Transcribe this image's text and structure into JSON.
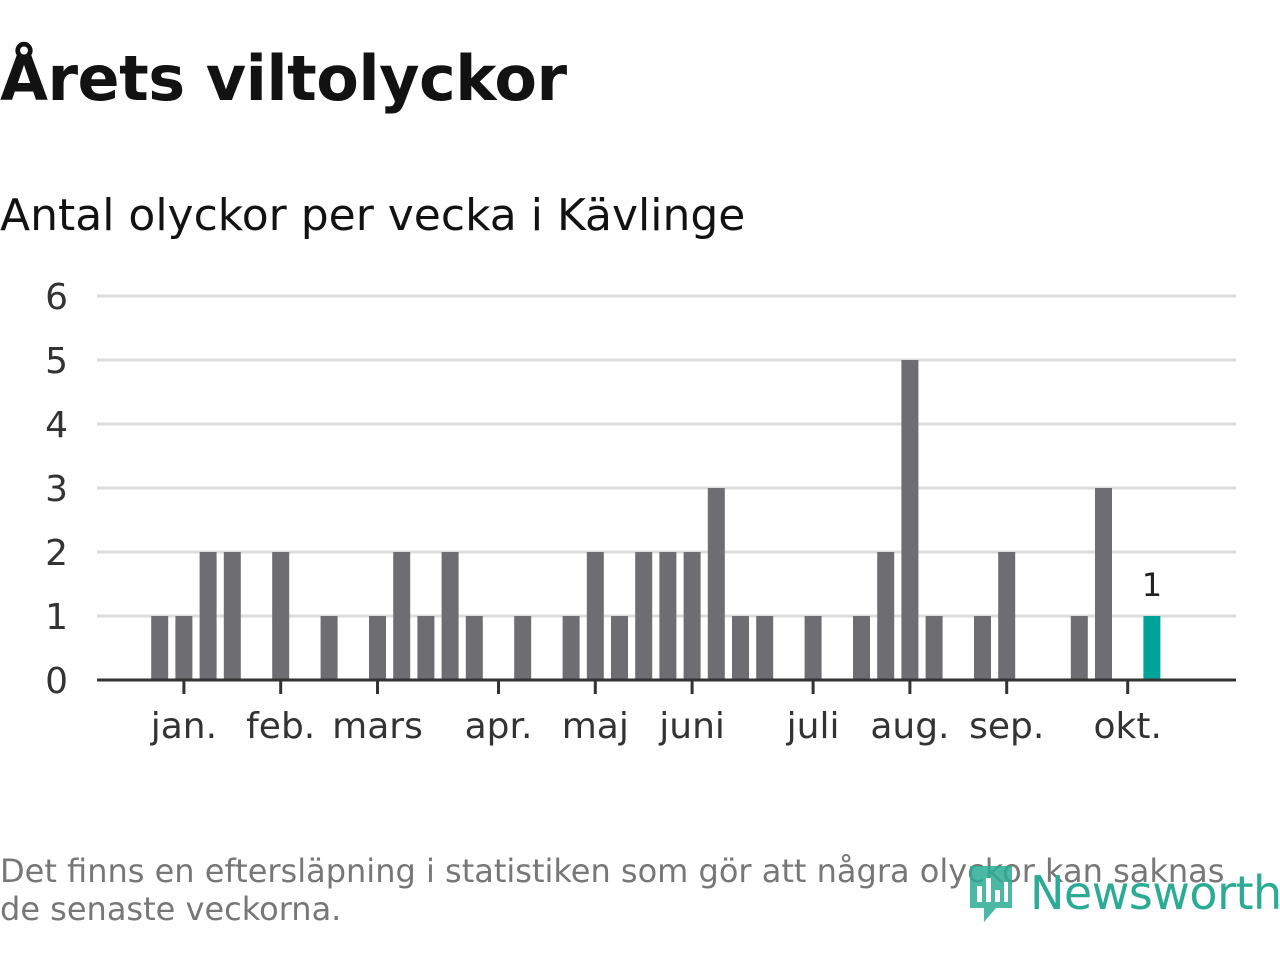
{
  "title": "Årets viltolyckor",
  "subtitle": "Antal olyckor per vecka i Kävlinge",
  "footnote": "Det finns en eftersläpning i statistiken som gör att några olyckor kan saknas de senaste veckorna.",
  "brand": "Newsworthy",
  "colors": {
    "bar": "#6d6d72",
    "highlight": "#00a39a",
    "grid": "#dddddd",
    "axis": "#333333",
    "brand": "#2bab93"
  },
  "chart_data": {
    "type": "bar",
    "title": "Antal olyckor per vecka i Kävlinge",
    "xlabel": "",
    "ylabel": "",
    "ylim": [
      0,
      6
    ],
    "yticks": [
      0,
      1,
      2,
      3,
      4,
      5,
      6
    ],
    "grid": true,
    "weeks": [
      1,
      2,
      3,
      4,
      5,
      6,
      7,
      8,
      9,
      10,
      11,
      12,
      13,
      14,
      15,
      16,
      17,
      18,
      19,
      20,
      21,
      22,
      23,
      24,
      25,
      26,
      27,
      28,
      29,
      30,
      31,
      32,
      33,
      34,
      35,
      36,
      37,
      38,
      39,
      40,
      41,
      42,
      43
    ],
    "values": [
      0,
      1,
      1,
      2,
      2,
      0,
      2,
      0,
      1,
      0,
      1,
      2,
      1,
      2,
      1,
      0,
      1,
      0,
      1,
      2,
      1,
      2,
      2,
      2,
      3,
      1,
      1,
      0,
      1,
      0,
      1,
      2,
      5,
      1,
      0,
      1,
      2,
      0,
      0,
      1,
      3,
      0,
      1
    ],
    "highlight": {
      "week": 43,
      "value": 1,
      "label": "1"
    },
    "month_ticks": [
      {
        "label": "jan.",
        "week": 3
      },
      {
        "label": "feb.",
        "week": 7
      },
      {
        "label": "mars",
        "week": 11
      },
      {
        "label": "apr.",
        "week": 16
      },
      {
        "label": "maj",
        "week": 20
      },
      {
        "label": "juni",
        "week": 24
      },
      {
        "label": "juli",
        "week": 29
      },
      {
        "label": "aug.",
        "week": 33
      },
      {
        "label": "sep.",
        "week": 37
      },
      {
        "label": "okt.",
        "week": 42
      }
    ]
  }
}
